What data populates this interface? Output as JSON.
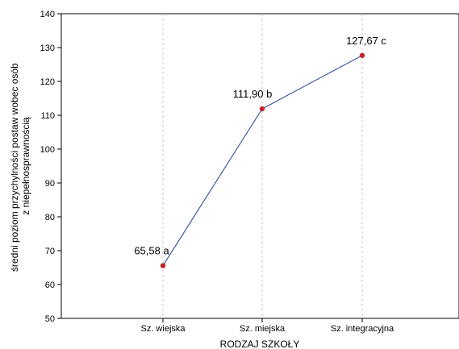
{
  "chart_data": {
    "type": "line",
    "categories": [
      "Sz. wiejska",
      "Sz. miejska",
      "Sz. integracyjna"
    ],
    "values": [
      65.58,
      111.9,
      127.67
    ],
    "data_labels": [
      "65,58 a",
      "111,90 b",
      "127,67 c"
    ],
    "xlabel": "RODZAJ SZKOŁY",
    "ylabel_lines": [
      "średni poziom przychylności postaw wobec osób",
      "z niepełnosprawnością"
    ],
    "ylim": [
      50,
      140
    ],
    "yticks": [
      50,
      60,
      70,
      80,
      90,
      100,
      110,
      120,
      130,
      140
    ],
    "grid": "vertical dashed at categories",
    "colors": {
      "line": "#1f3f8f",
      "marker": "#c0272d"
    }
  }
}
